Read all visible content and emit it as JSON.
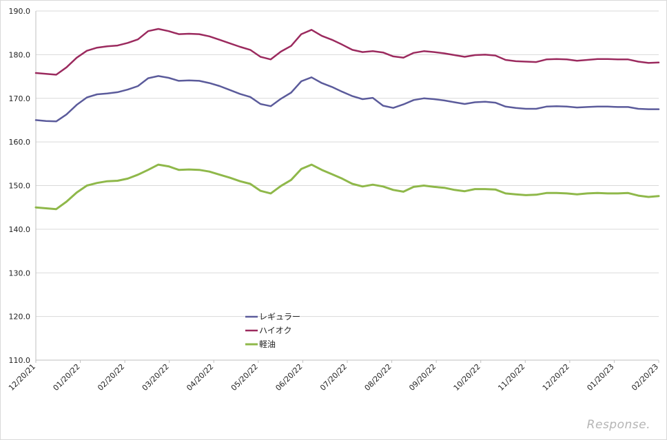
{
  "chart_data": {
    "type": "line",
    "title": "",
    "xlabel": "",
    "ylabel": "",
    "ylim": [
      110,
      190
    ],
    "y_ticks": [
      "110.0",
      "120.0",
      "130.0",
      "140.0",
      "150.0",
      "160.0",
      "170.0",
      "180.0",
      "190.0"
    ],
    "x_ticks": [
      "12/20/21",
      "01/20/22",
      "02/20/22",
      "03/20/22",
      "04/20/22",
      "05/20/22",
      "06/20/22",
      "07/20/22",
      "08/20/22",
      "09/20/22",
      "10/20/22",
      "11/20/22",
      "12/20/22",
      "01/20/23",
      "02/20/23"
    ],
    "legend_position": "bottom-center",
    "series": [
      {
        "name": "レギュラー",
        "color": "#5b5b9b",
        "values": [
          165.0,
          164.8,
          164.7,
          166.3,
          168.5,
          170.2,
          170.9,
          171.1,
          171.4,
          172.0,
          172.8,
          174.6,
          175.1,
          174.7,
          174.0,
          174.1,
          174.0,
          173.5,
          172.8,
          171.9,
          171.0,
          170.3,
          168.7,
          168.2,
          169.9,
          171.3,
          173.9,
          174.8,
          173.5,
          172.6,
          171.5,
          170.5,
          169.8,
          170.1,
          168.3,
          167.8,
          168.6,
          169.6,
          170.0,
          169.8,
          169.5,
          169.1,
          168.7,
          169.1,
          169.2,
          169.0,
          168.1,
          167.8,
          167.6,
          167.6,
          168.1,
          168.2,
          168.1,
          167.9,
          168.0,
          168.1,
          168.1,
          168.0,
          168.0,
          167.6,
          167.5,
          167.5
        ]
      },
      {
        "name": "ハイオク",
        "color": "#9b2a5e",
        "values": [
          175.8,
          175.6,
          175.4,
          177.1,
          179.3,
          180.9,
          181.6,
          181.9,
          182.1,
          182.7,
          183.5,
          185.4,
          185.9,
          185.4,
          184.7,
          184.8,
          184.7,
          184.2,
          183.4,
          182.6,
          181.8,
          181.1,
          179.5,
          178.9,
          180.7,
          182.0,
          184.7,
          185.7,
          184.3,
          183.4,
          182.3,
          181.1,
          180.6,
          180.8,
          180.5,
          179.6,
          179.3,
          180.4,
          180.8,
          180.6,
          180.3,
          179.9,
          179.5,
          179.9,
          180.0,
          179.8,
          178.8,
          178.5,
          178.4,
          178.3,
          178.9,
          179.0,
          178.9,
          178.6,
          178.8,
          179.0,
          179.0,
          178.9,
          178.9,
          178.4,
          178.1,
          178.2
        ]
      },
      {
        "name": "軽油",
        "color": "#8fb84a",
        "values": [
          145.0,
          144.8,
          144.6,
          146.3,
          148.4,
          150.0,
          150.6,
          151.0,
          151.1,
          151.6,
          152.5,
          153.6,
          154.8,
          154.4,
          153.6,
          153.7,
          153.6,
          153.2,
          152.5,
          151.8,
          151.0,
          150.4,
          148.8,
          148.2,
          149.9,
          151.3,
          153.8,
          154.8,
          153.6,
          152.6,
          151.6,
          150.4,
          149.8,
          150.2,
          149.8,
          149.0,
          148.6,
          149.7,
          150.0,
          149.7,
          149.5,
          149.0,
          148.7,
          149.2,
          149.2,
          149.1,
          148.2,
          148.0,
          147.8,
          147.9,
          148.3,
          148.3,
          148.2,
          148.0,
          148.2,
          148.3,
          148.2,
          148.2,
          148.3,
          147.7,
          147.4,
          147.6
        ]
      }
    ]
  },
  "watermark": "Response."
}
